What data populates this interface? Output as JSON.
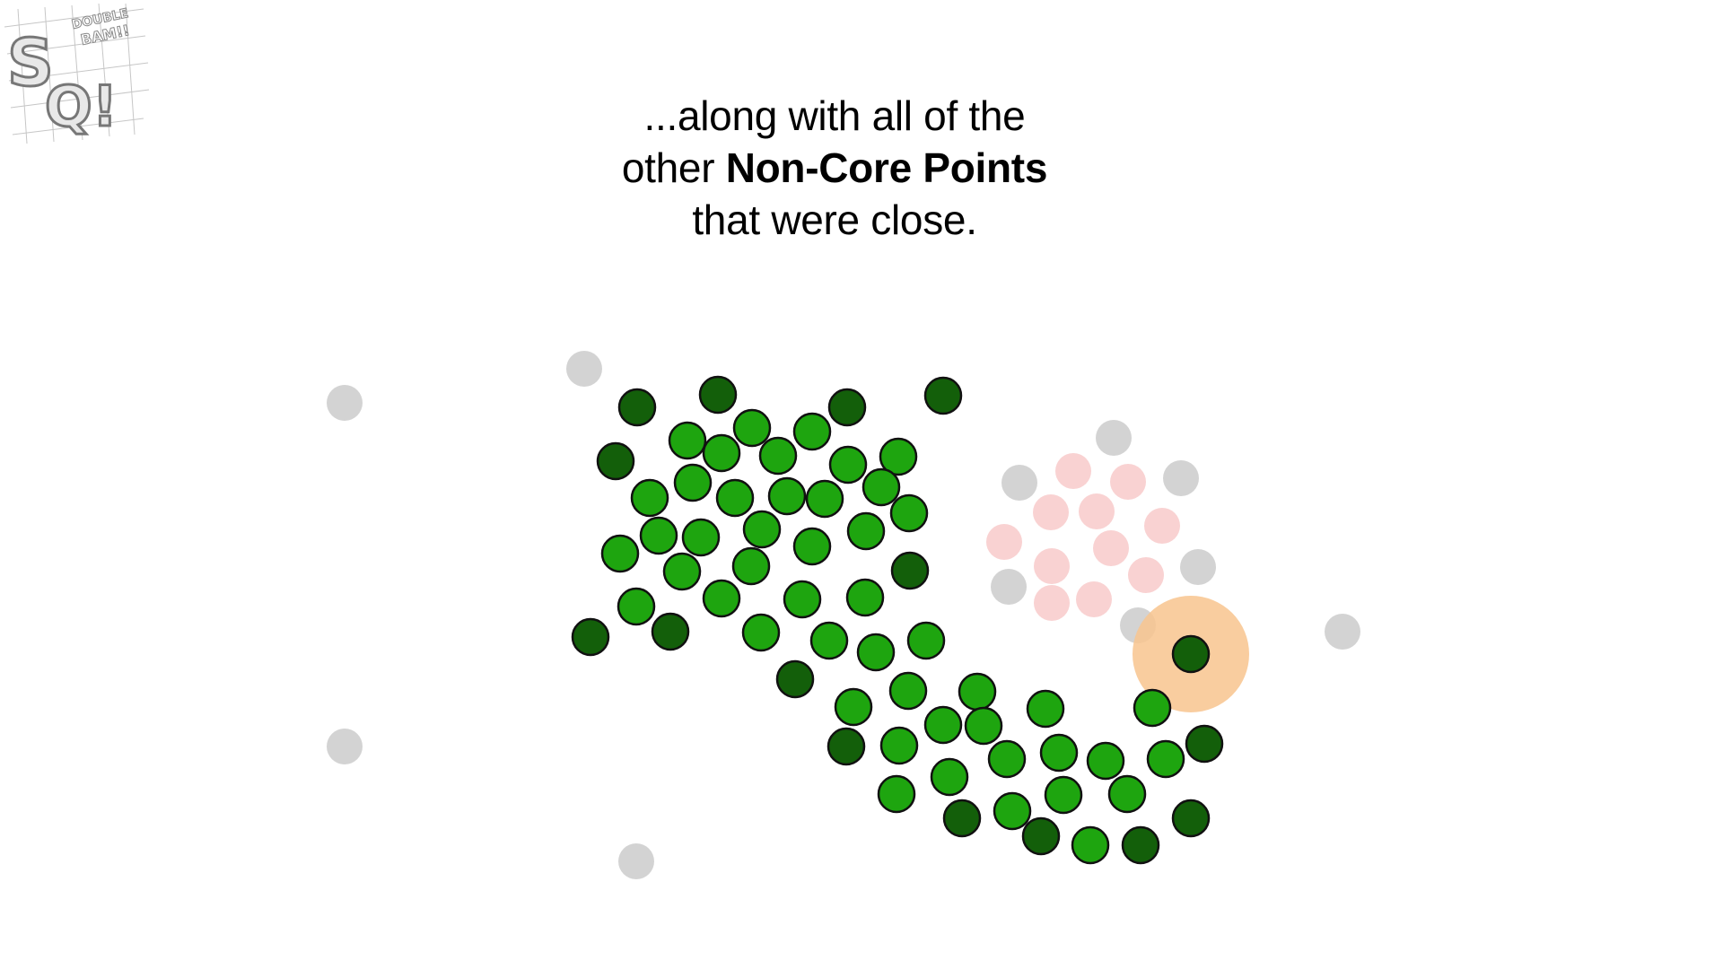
{
  "logo": {
    "letters_top": "S",
    "letters_bottom": "Q!",
    "tagline_1": "DOUBLE",
    "tagline_2": "BAM!!"
  },
  "caption": {
    "line1": "...along with all of the",
    "line2_prefix": "other ",
    "line2_bold": "Non-Core Points",
    "line3": "that were close."
  },
  "colors": {
    "core_point": "#1ea50f",
    "non_core_point": "#135f0a",
    "noise_point": "#d3d3d3",
    "faded_cluster_point": "#f9d2d2",
    "highlight_circle": "#f8c48e",
    "outline": "#111111"
  }
}
